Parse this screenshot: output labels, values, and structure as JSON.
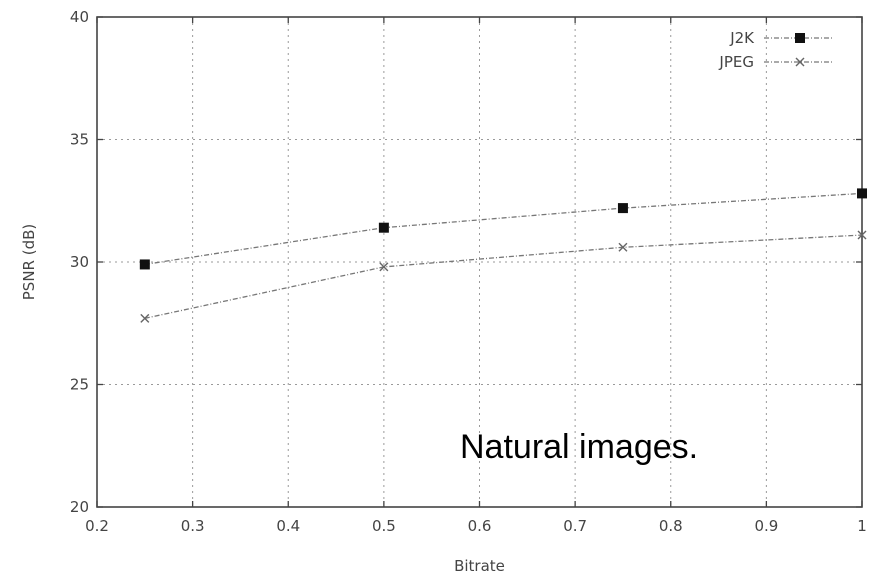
{
  "chart_data": {
    "type": "line",
    "title": "",
    "xlabel": "Bitrate",
    "ylabel": "PSNR (dB)",
    "xlim": [
      0.2,
      1
    ],
    "ylim": [
      20,
      40
    ],
    "xticks": [
      0.2,
      0.3,
      0.4,
      0.5,
      0.6,
      0.7,
      0.8,
      0.9,
      1
    ],
    "xtick_labels": [
      "0.2",
      "0.3",
      "0.4",
      "0.5",
      "0.6",
      "0.7",
      "0.8",
      "0.9",
      "1"
    ],
    "yticks": [
      20,
      25,
      30,
      35,
      40
    ],
    "ytick_labels": [
      "20",
      "25",
      "30",
      "35",
      "40"
    ],
    "grid": true,
    "legend_position": "top-right",
    "series": [
      {
        "name": "J2K",
        "marker": "square",
        "x": [
          0.25,
          0.5,
          0.75,
          1.0
        ],
        "y": [
          29.9,
          31.4,
          32.2,
          32.8
        ]
      },
      {
        "name": "JPEG",
        "marker": "x",
        "x": [
          0.25,
          0.5,
          0.75,
          1.0
        ],
        "y": [
          27.7,
          29.8,
          30.6,
          31.1
        ]
      }
    ],
    "annotation": "Natural images."
  }
}
